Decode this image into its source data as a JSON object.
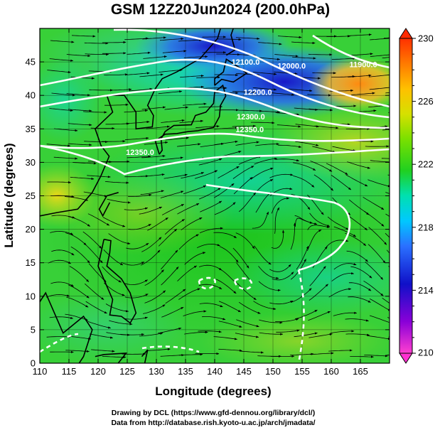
{
  "title": "GSM 12Z20Jun2024 (200.0hPa)",
  "x_axis": {
    "label": "Longitude (degrees)",
    "range": [
      110,
      170
    ],
    "ticks": [
      "110",
      "115",
      "120",
      "125",
      "130",
      "135",
      "140",
      "145",
      "150",
      "155",
      "160",
      "165"
    ]
  },
  "y_axis": {
    "label": "Latitude  (degrees)",
    "range": [
      0,
      50
    ],
    "ticks": [
      "0",
      "5",
      "10",
      "15",
      "20",
      "25",
      "30",
      "35",
      "40",
      "45"
    ]
  },
  "colorbar": {
    "range": [
      210,
      230
    ],
    "ticks": [
      "210",
      "214",
      "218",
      "222",
      "226",
      "230"
    ]
  },
  "contour_labels": [
    {
      "text": "12100.0",
      "lon": 145.3,
      "lat": 44.6
    },
    {
      "text": "12000.0",
      "lon": 153.2,
      "lat": 44.0
    },
    {
      "text": "11900.0",
      "lon": 165.5,
      "lat": 44.2
    },
    {
      "text": "12200.0",
      "lon": 147.4,
      "lat": 40.1
    },
    {
      "text": "12300.0",
      "lon": 146.2,
      "lat": 36.4
    },
    {
      "text": "12350.0",
      "lon": 146.0,
      "lat": 34.5
    },
    {
      "text": "12350.0",
      "lon": 127.2,
      "lat": 31.1
    }
  ],
  "credits": {
    "line1": "Drawing by DCL (https://www.gfd-dennou.org/library/dcl/)",
    "line2": "Data from http://database.rish.kyoto-u.ac.jp/arch/jmadata/"
  }
}
